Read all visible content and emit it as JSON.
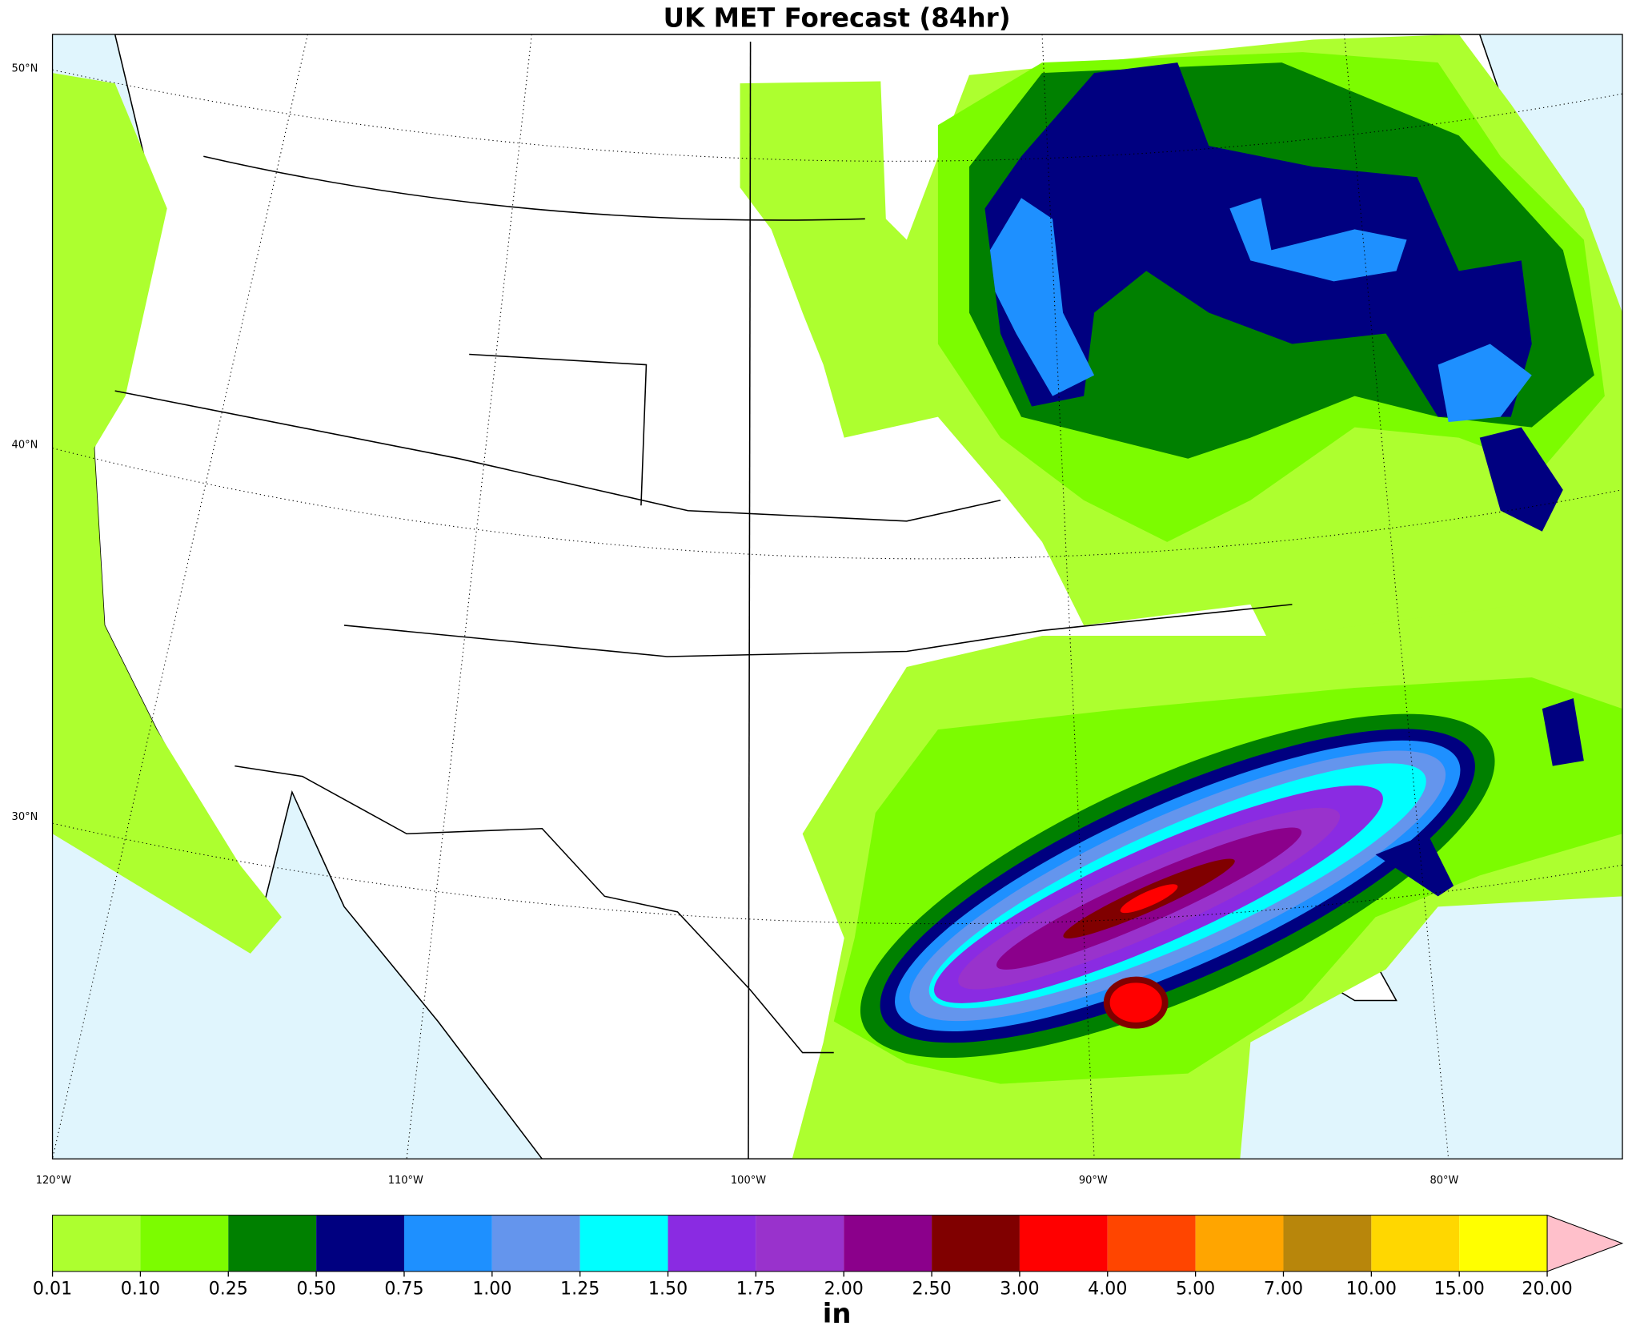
{
  "title": "UK MET Forecast (84hr)",
  "latitude_labels": [
    "50°N",
    "40°N",
    "30°N"
  ],
  "longitude_labels": [
    "120°W",
    "110°W",
    "100°W",
    "90°W",
    "80°W"
  ],
  "colorbar": {
    "levels": [
      {
        "value": 0.01,
        "label": "0.01"
      },
      {
        "value": 0.1,
        "label": "0.10"
      },
      {
        "value": 0.25,
        "label": "0.25"
      },
      {
        "value": 0.5,
        "label": "0.50"
      },
      {
        "value": 0.75,
        "label": "0.75"
      },
      {
        "value": 1,
        "label": "1.00"
      },
      {
        "value": 1.25,
        "label": "1.25"
      },
      {
        "value": 1.5,
        "label": "1.50"
      },
      {
        "value": 1.75,
        "label": "1.75"
      },
      {
        "value": 2,
        "label": "2.00"
      },
      {
        "value": 2.5,
        "label": "2.50"
      },
      {
        "value": 3,
        "label": "3.00"
      },
      {
        "value": 4,
        "label": "4.00"
      },
      {
        "value": 5,
        "label": "5.00"
      },
      {
        "value": 7,
        "label": "7.00"
      },
      {
        "value": 10,
        "label": "10.00"
      },
      {
        "value": 15,
        "label": "15.00"
      },
      {
        "value": 20,
        "label": "20.00"
      }
    ],
    "colors": [
      "#adff2f",
      "#7cfc00",
      "#008000",
      "#000080",
      "#1e90ff",
      "#6495ed",
      "#00ffff",
      "#8a2be2",
      "#9932cc",
      "#8b008b",
      "#800000",
      "#ff0000",
      "#ff4500",
      "#ffa500",
      "#b8860b",
      "#ffd700",
      "#ffff00"
    ],
    "extend_color": "#ffc0cb",
    "unit": "in"
  }
}
